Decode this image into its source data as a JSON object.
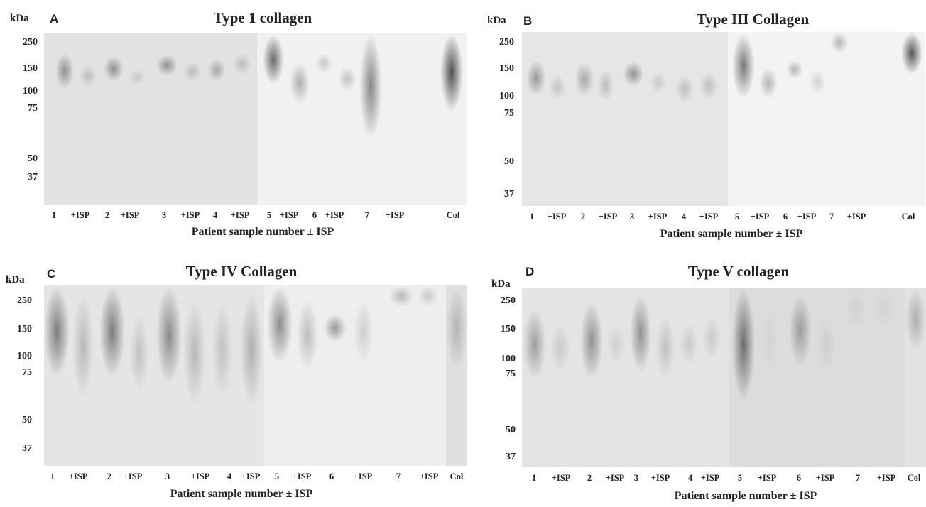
{
  "markers": [
    "250",
    "150",
    "100",
    "75",
    "50",
    "37"
  ],
  "unit": "kDa",
  "lane_labels": [
    "1",
    "+ISP",
    "2",
    "+ISP",
    "3",
    "+ISP",
    "4",
    "+ISP",
    "5",
    "+ISP",
    "6",
    "+ISP",
    "7",
    "+ISP",
    "Col"
  ],
  "xlabel": "Patient sample number ± ISP",
  "panels": [
    {
      "letter": "A",
      "title": "Type 1 collagen"
    },
    {
      "letter": "B",
      "title": "Type III Collagen"
    },
    {
      "letter": "C",
      "title": "Type IV Collagen"
    },
    {
      "letter": "D",
      "title": "Type V collagen"
    }
  ]
}
